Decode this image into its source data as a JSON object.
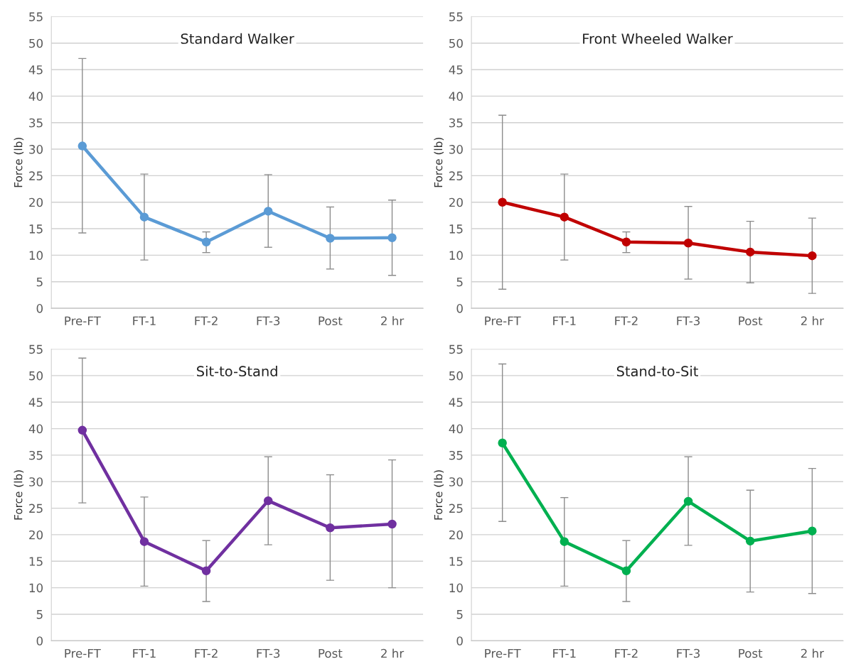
{
  "chart_data": [
    {
      "type": "line",
      "title": "Standard Walker",
      "ylabel": "Force (lb)",
      "categories": [
        "Pre-FT",
        "FT-1",
        "FT-2",
        "FT-3",
        "Post",
        "2 hr"
      ],
      "ylim": [
        0,
        55
      ],
      "yticks": [
        0,
        5,
        10,
        15,
        20,
        25,
        30,
        35,
        40,
        45,
        50,
        55
      ],
      "grid": "y",
      "marker": "circle",
      "line_style": "solid",
      "series": [
        {
          "color": "#5b9bd5",
          "values": [
            30.6,
            17.2,
            12.5,
            18.3,
            13.2,
            13.3
          ],
          "errors": [
            [
              14.2,
              47.1
            ],
            [
              9.1,
              25.3
            ],
            [
              10.5,
              14.4
            ],
            [
              11.5,
              25.2
            ],
            [
              7.4,
              19.1
            ],
            [
              6.2,
              20.4
            ]
          ]
        }
      ]
    },
    {
      "type": "line",
      "title": "Front Wheeled Walker",
      "ylabel": "Force (lb)",
      "categories": [
        "Pre-FT",
        "FT-1",
        "FT-2",
        "FT-3",
        "Post",
        "2 hr"
      ],
      "ylim": [
        0,
        55
      ],
      "yticks": [
        0,
        5,
        10,
        15,
        20,
        25,
        30,
        35,
        40,
        45,
        50,
        55
      ],
      "grid": "y",
      "marker": "circle",
      "line_style": "solid",
      "series": [
        {
          "color": "#c00000",
          "values": [
            20.0,
            17.2,
            12.5,
            12.3,
            10.6,
            9.9
          ],
          "errors": [
            [
              3.6,
              36.4
            ],
            [
              9.1,
              25.3
            ],
            [
              10.5,
              14.4
            ],
            [
              5.5,
              19.2
            ],
            [
              4.8,
              16.4
            ],
            [
              2.8,
              17.0
            ]
          ]
        }
      ]
    },
    {
      "type": "line",
      "title": "Sit-to-Stand",
      "ylabel": "Force (lb)",
      "categories": [
        "Pre-FT",
        "FT-1",
        "FT-2",
        "FT-3",
        "Post",
        "2 hr"
      ],
      "ylim": [
        0,
        55
      ],
      "yticks": [
        0,
        5,
        10,
        15,
        20,
        25,
        30,
        35,
        40,
        45,
        50,
        55
      ],
      "grid": "y",
      "marker": "circle",
      "line_style": "solid",
      "series": [
        {
          "color": "#7030a0",
          "values": [
            39.7,
            18.7,
            13.2,
            26.4,
            21.3,
            22.0
          ],
          "errors": [
            [
              26.0,
              53.3
            ],
            [
              10.3,
              27.1
            ],
            [
              7.4,
              18.9
            ],
            [
              18.1,
              34.7
            ],
            [
              11.4,
              31.3
            ],
            [
              10.0,
              34.1
            ]
          ]
        }
      ]
    },
    {
      "type": "line",
      "title": "Stand-to-Sit",
      "ylabel": "Force (lb)",
      "categories": [
        "Pre-FT",
        "FT-1",
        "FT-2",
        "FT-3",
        "Post",
        "2 hr"
      ],
      "ylim": [
        0,
        55
      ],
      "yticks": [
        0,
        5,
        10,
        15,
        20,
        25,
        30,
        35,
        40,
        45,
        50,
        55
      ],
      "grid": "y",
      "marker": "circle",
      "line_style": "solid",
      "series": [
        {
          "color": "#00b050",
          "values": [
            37.3,
            18.7,
            13.2,
            26.3,
            18.8,
            20.7
          ],
          "errors": [
            [
              22.5,
              52.2
            ],
            [
              10.3,
              27.0
            ],
            [
              7.4,
              18.9
            ],
            [
              18.0,
              34.7
            ],
            [
              9.2,
              28.4
            ],
            [
              8.9,
              32.5
            ]
          ]
        }
      ]
    }
  ]
}
